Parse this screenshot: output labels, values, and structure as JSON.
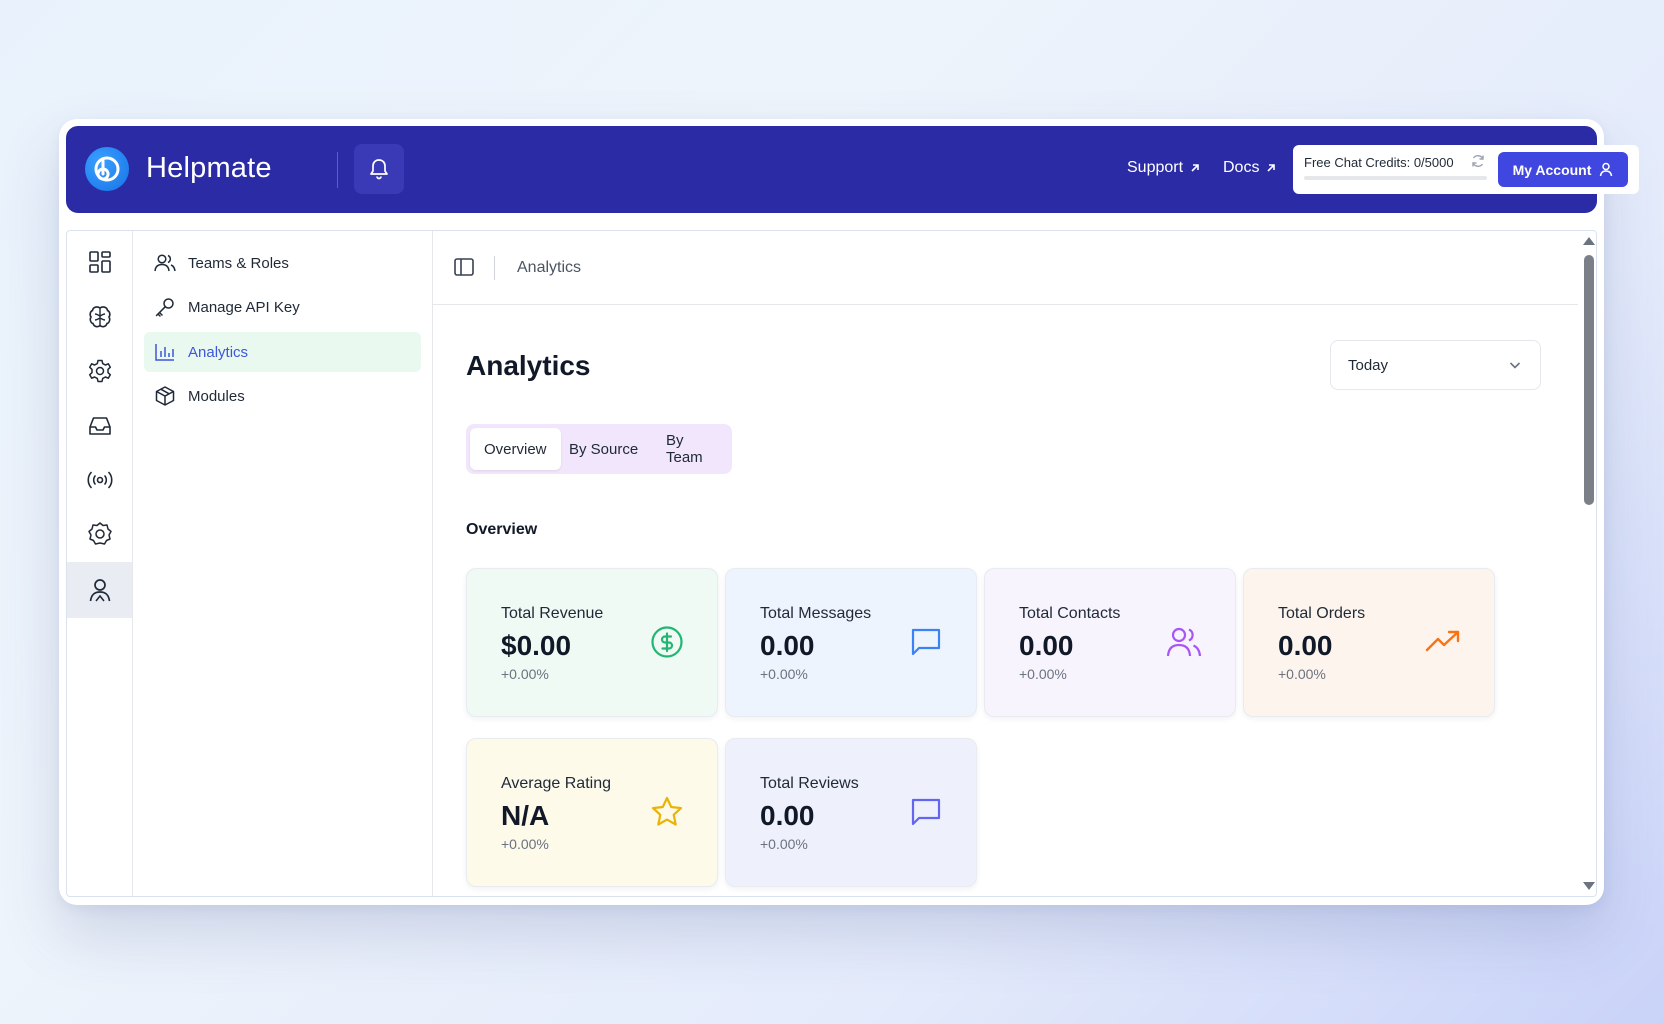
{
  "colors": {
    "topbar": "#2b2ba6",
    "accent": "#4046e0",
    "active_nav_bg": "#e9f9ef",
    "active_nav_text": "#3e57d9"
  },
  "header": {
    "app_title": "Helpmate",
    "support_label": "Support",
    "docs_label": "Docs",
    "credits_label": "Free Chat Credits: 0/5000",
    "credits_used_fraction": 0,
    "account_label": "My Account"
  },
  "icon_rail": [
    {
      "icon": "dashboard-grid-icon"
    },
    {
      "icon": "brain-icon"
    },
    {
      "icon": "gear-icon"
    },
    {
      "icon": "inbox-icon"
    },
    {
      "icon": "broadcast-icon"
    },
    {
      "icon": "settings-badge-icon"
    },
    {
      "icon": "user-icon",
      "active": true
    }
  ],
  "submenu": {
    "items": [
      {
        "label": "Teams & Roles",
        "icon": "users-icon"
      },
      {
        "label": "Manage API Key",
        "icon": "key-icon"
      },
      {
        "label": "Analytics",
        "icon": "bar-chart-icon",
        "active": true
      },
      {
        "label": "Modules",
        "icon": "box-icon"
      }
    ]
  },
  "breadcrumb": {
    "current": "Analytics"
  },
  "main": {
    "title": "Analytics",
    "range_select": "Today",
    "tabs": [
      {
        "label": "Overview",
        "active": true
      },
      {
        "label": "By Source"
      },
      {
        "label": "By Team"
      }
    ],
    "section_title": "Overview",
    "cards": [
      {
        "label": "Total Revenue",
        "value": "$0.00",
        "delta": "+0.00%",
        "icon": "dollar-circle-icon",
        "color": "#22b573",
        "bg": "#eefaf3"
      },
      {
        "label": "Total Messages",
        "value": "0.00",
        "delta": "+0.00%",
        "icon": "message-square-icon",
        "color": "#3b82f6",
        "bg": "#eef4fd"
      },
      {
        "label": "Total Contacts",
        "value": "0.00",
        "delta": "+0.00%",
        "icon": "users-icon",
        "color": "#a855f7",
        "bg": "#f8f4fd"
      },
      {
        "label": "Total Orders",
        "value": "0.00",
        "delta": "+0.00%",
        "icon": "trending-up-icon",
        "color": "#f97316",
        "bg": "#fdf5ed"
      },
      {
        "label": "Average Rating",
        "value": "N/A",
        "delta": "+0.00%",
        "icon": "star-icon",
        "color": "#eab308",
        "bg": "#fdfaea"
      },
      {
        "label": "Total Reviews",
        "value": "0.00",
        "delta": "+0.00%",
        "icon": "message-square-icon",
        "color": "#6366f1",
        "bg": "#eef1fc"
      }
    ]
  }
}
